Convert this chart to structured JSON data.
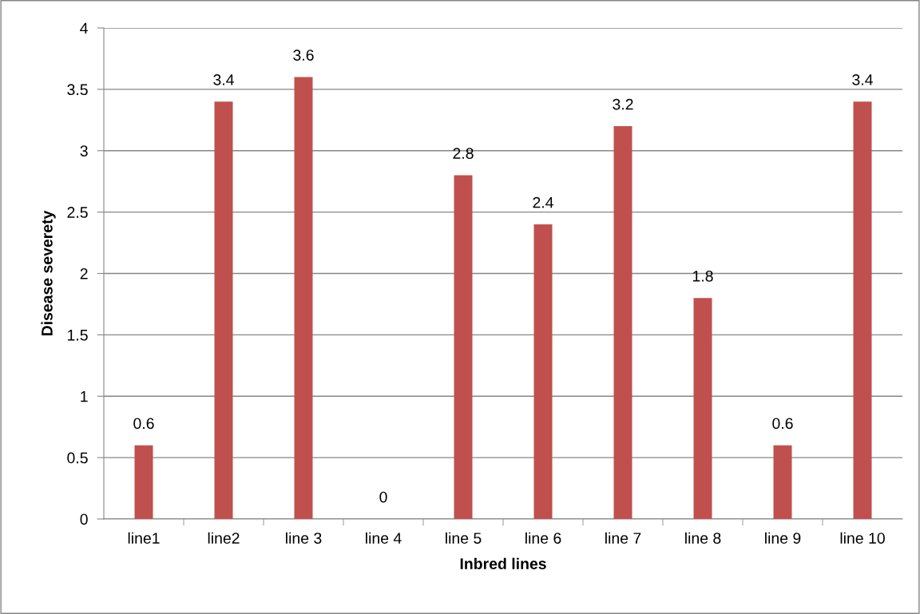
{
  "chart_data": {
    "type": "bar",
    "xlabel": "Inbred lines",
    "ylabel": "Disease severety",
    "categories": [
      "line1",
      "line2",
      "line 3",
      "line 4",
      "line 5",
      "line 6",
      "line 7",
      "line 8",
      "line 9",
      "line 10"
    ],
    "values": [
      0.6,
      3.4,
      3.6,
      0,
      2.8,
      2.4,
      3.2,
      1.8,
      0.6,
      3.4
    ],
    "color": "#c0504d",
    "ylim": [
      0,
      4
    ],
    "yticks": [
      0,
      0.5,
      1,
      1.5,
      2,
      2.5,
      3,
      3.5,
      4
    ],
    "grid": "y",
    "data_labels": true
  }
}
